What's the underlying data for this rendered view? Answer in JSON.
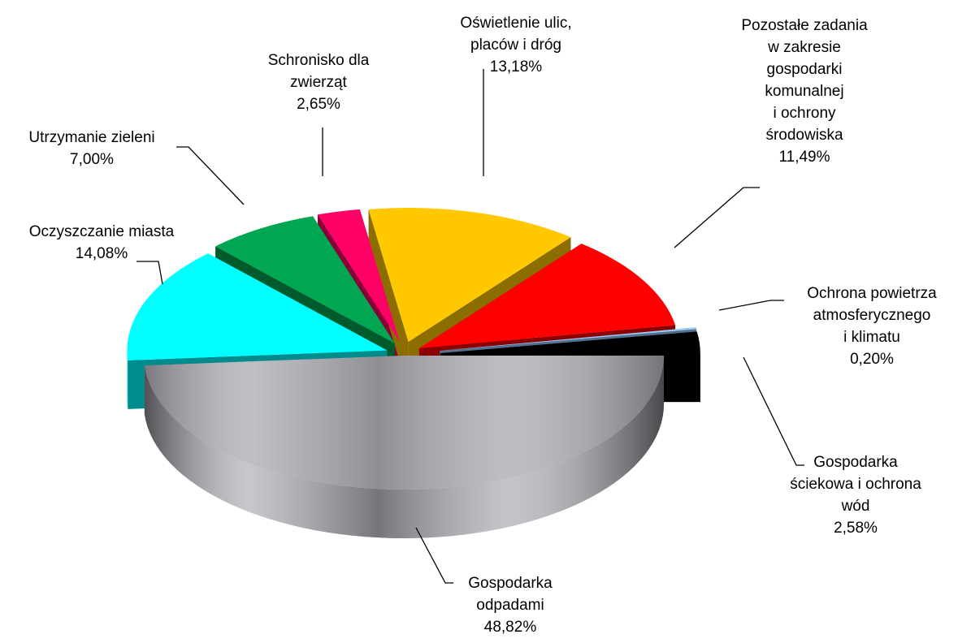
{
  "chart_data": {
    "type": "pie3d",
    "categories": [
      "Gospodarka\nodpadami",
      "Oczyszczanie miasta",
      "Utrzymanie zieleni",
      "Schronisko dla\nzwierząt",
      "Oświetlenie ulic,\nplaców i dróg",
      "Pozostałe zadania\nw zakresie\ngospodarki\nkomunalnej\ni ochrony\nśrodowiska",
      "Ochrona powietrza\natmosferycznego\ni klimatu",
      "Gospodarka\nściekowa i ochrona\nwód"
    ],
    "values": [
      48.82,
      14.08,
      7.0,
      2.65,
      13.18,
      11.49,
      0.2,
      2.58
    ],
    "value_labels": [
      "48,82%",
      "14,08%",
      "7,00%",
      "2,65%",
      "13,18%",
      "11,49%",
      "0,20%",
      "2,58%"
    ],
    "colors": [
      "#b4b4bc",
      "#00ffff",
      "#00a651",
      "#ff0066",
      "#ffc800",
      "#ff0000",
      "#99ccff",
      "#000000"
    ]
  }
}
